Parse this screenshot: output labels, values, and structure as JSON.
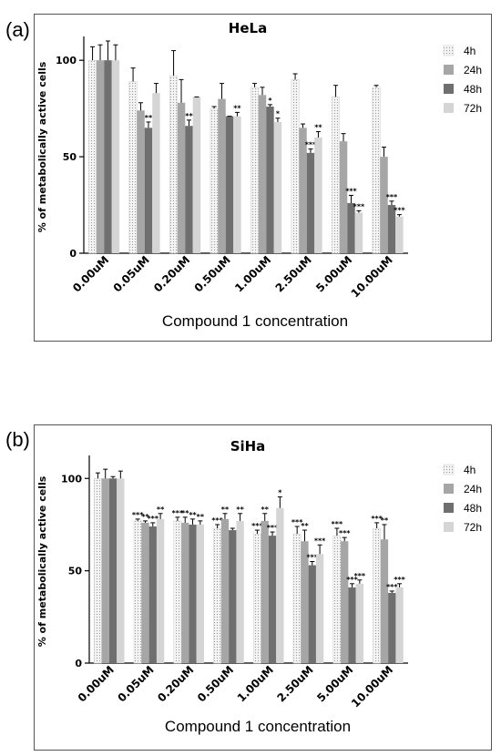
{
  "chart_data": [
    {
      "panel_label": "(a)",
      "type": "bar",
      "title": "HeLa",
      "ylabel": "% of metabolically active cells",
      "xlabel": "Compound 1 concentration",
      "ylim": [
        0,
        110
      ],
      "yticks": [
        "0",
        "50",
        "100"
      ],
      "categories": [
        "0.00uM",
        "0.05uM",
        "0.20uM",
        "0.50uM",
        "1.00uM",
        "2.50uM",
        "5.00uM",
        "10.00uM"
      ],
      "legend_position": "right",
      "series": [
        {
          "name": "4h",
          "color": "#ececec",
          "pattern": "dots",
          "values": [
            100,
            89,
            92,
            75,
            86,
            90,
            81,
            86
          ],
          "errors": [
            7,
            7,
            13,
            1,
            2,
            3,
            6,
            1
          ],
          "significance": [
            "",
            "",
            "",
            "",
            "",
            "",
            "",
            ""
          ]
        },
        {
          "name": "24h",
          "color": "#a6a6a6",
          "values": [
            100,
            74,
            78,
            80,
            82,
            65,
            58,
            50
          ],
          "errors": [
            8,
            4,
            12,
            8,
            4,
            2,
            4,
            5
          ],
          "significance": [
            "",
            "",
            "",
            "",
            "",
            "",
            "",
            ""
          ]
        },
        {
          "name": "48h",
          "color": "#6f6f6f",
          "values": [
            100,
            65,
            66,
            71,
            76,
            52,
            26,
            25
          ],
          "errors": [
            10,
            3,
            3,
            0,
            1,
            2,
            4,
            2
          ],
          "significance": [
            "",
            "**",
            "**",
            "",
            "*",
            "***",
            "***",
            "***"
          ]
        },
        {
          "name": "72h",
          "color": "#d5d5d5",
          "values": [
            100,
            83,
            81,
            71,
            68,
            60,
            21,
            19
          ],
          "errors": [
            8,
            5,
            0,
            2,
            2,
            3,
            1,
            1
          ],
          "significance": [
            "",
            "",
            "",
            "**",
            "*",
            "**",
            "***",
            "***"
          ]
        }
      ]
    },
    {
      "panel_label": "(b)",
      "type": "bar",
      "title": "SiHa",
      "ylabel": "% of metabolically active cells",
      "xlabel": "Compound 1 concentration",
      "ylim": [
        0,
        110
      ],
      "yticks": [
        "0",
        "50",
        "100"
      ],
      "categories": [
        "0.00uM",
        "0.05uM",
        "0.20uM",
        "0.50uM",
        "1.00uM",
        "2.50uM",
        "5.00uM",
        "10.00uM"
      ],
      "legend_position": "right",
      "series": [
        {
          "name": "4h",
          "color": "#ececec",
          "pattern": "dots",
          "values": [
            100,
            77,
            77,
            73,
            70,
            70,
            69,
            73
          ],
          "errors": [
            3,
            1,
            2,
            2,
            2,
            4,
            4,
            3
          ],
          "significance": [
            "",
            "***",
            "***",
            "***",
            "***",
            "***",
            "***",
            "***"
          ]
        },
        {
          "name": "24h",
          "color": "#a6a6a6",
          "values": [
            100,
            76,
            76,
            78,
            77,
            66,
            66,
            67
          ],
          "errors": [
            5,
            1,
            3,
            3,
            4,
            6,
            2,
            8
          ],
          "significance": [
            "",
            "**",
            "**",
            "**",
            "**",
            "**",
            "***",
            "**"
          ]
        },
        {
          "name": "48h",
          "color": "#6f6f6f",
          "values": [
            100,
            74,
            75,
            72,
            69,
            53,
            41,
            38
          ],
          "errors": [
            1,
            2,
            3,
            1,
            2,
            2,
            2,
            1
          ],
          "significance": [
            "",
            "***",
            "**",
            "",
            "***",
            "***",
            "***",
            "***"
          ]
        },
        {
          "name": "72h",
          "color": "#d5d5d5",
          "values": [
            100,
            78,
            75,
            77,
            84,
            59,
            43,
            41
          ],
          "errors": [
            4,
            3,
            2,
            4,
            6,
            5,
            2,
            2
          ],
          "significance": [
            "",
            "**",
            "**",
            "**",
            "*",
            "***",
            "***",
            "***"
          ]
        }
      ]
    }
  ]
}
